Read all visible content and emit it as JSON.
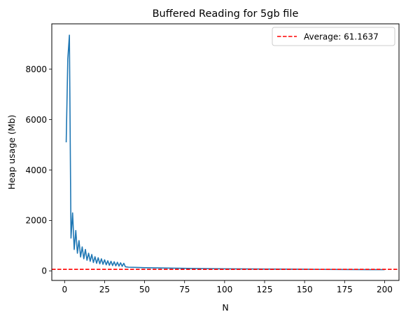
{
  "chart_data": {
    "type": "line",
    "title": "Buffered Reading for 5gb file",
    "xlabel": "N",
    "ylabel": "Heap usage (Mb)",
    "xlim": [
      -8,
      209
    ],
    "ylim": [
      -380,
      9800
    ],
    "x_ticks": [
      0,
      25,
      50,
      75,
      100,
      125,
      150,
      175,
      200
    ],
    "y_ticks": [
      0,
      2000,
      4000,
      6000,
      8000
    ],
    "grid": false,
    "legend_position": "top-right",
    "series": [
      {
        "color": "#1f77b4",
        "style": "solid",
        "x": [
          1,
          2,
          3,
          4,
          5,
          6,
          7,
          8,
          9,
          10,
          11,
          12,
          13,
          14,
          15,
          16,
          17,
          18,
          19,
          20,
          21,
          22,
          23,
          24,
          25,
          26,
          27,
          28,
          29,
          30,
          31,
          32,
          33,
          34,
          35,
          36,
          37,
          38,
          40,
          45,
          50,
          60,
          70,
          80,
          90,
          100,
          110,
          120,
          130,
          140,
          150,
          160,
          170,
          180,
          190,
          200
        ],
        "y": [
          5100,
          8400,
          9350,
          1300,
          2300,
          850,
          1600,
          700,
          1200,
          550,
          950,
          480,
          850,
          420,
          700,
          380,
          650,
          330,
          560,
          300,
          520,
          280,
          480,
          260,
          440,
          240,
          400,
          220,
          380,
          210,
          360,
          200,
          340,
          190,
          320,
          180,
          300,
          160,
          145,
          135,
          125,
          115,
          105,
          95,
          88,
          82,
          78,
          74,
          70,
          66,
          62,
          58,
          55,
          52,
          50,
          48
        ]
      }
    ],
    "reference_line": {
      "y": 61.1637,
      "color": "#ff0000",
      "style": "dashed",
      "label": "Average: 61.1637"
    }
  }
}
